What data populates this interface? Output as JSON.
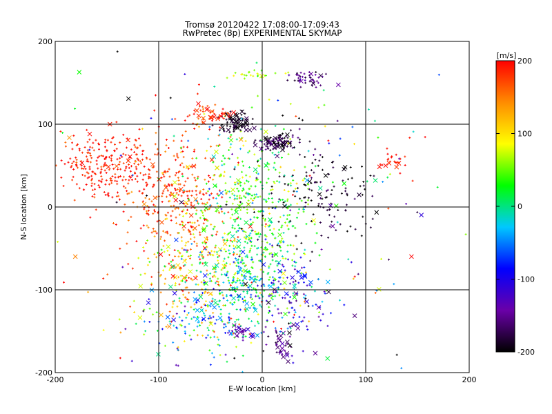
{
  "chart_data": {
    "type": "scatter",
    "title": "Tromsø 20120422 17:08:00-17:09:43",
    "subtitle": "RwPretec (8p) EXPERIMENTAL SKYMAP",
    "xlabel": "E-W location [km]",
    "ylabel": "N-S location [km]",
    "xlim": [
      -200,
      200
    ],
    "ylim": [
      -200,
      200
    ],
    "x_ticks": [
      "-200",
      "-100",
      "0",
      "100",
      "200"
    ],
    "y_ticks": [
      "-200",
      "-100",
      "0",
      "100",
      "200"
    ],
    "grid": true,
    "colorbar": {
      "label": "[m/s]",
      "range": [
        -200,
        200
      ],
      "ticks": [
        "200",
        "100",
        "0",
        "-100",
        "-200"
      ],
      "colormap": [
        "#000000",
        "#6a00a8",
        "#0000ff",
        "#00c8ff",
        "#00ff00",
        "#ffff00",
        "#ff8c00",
        "#ff0000"
      ]
    },
    "marker_types": [
      "+",
      "x"
    ],
    "clusters": [
      {
        "x": -150,
        "y": 50,
        "sx": 22,
        "sy": 20,
        "n": 260,
        "v": 190,
        "vs": 12,
        "cross": 0.03
      },
      {
        "x": -80,
        "y": 10,
        "sx": 25,
        "sy": 45,
        "n": 320,
        "v": 175,
        "vs": 25,
        "cross": 0.08
      },
      {
        "x": -10,
        "y": -10,
        "sx": 32,
        "sy": 55,
        "n": 520,
        "v": 40,
        "vs": 35,
        "cross": 0.07
      },
      {
        "x": -70,
        "y": -80,
        "sx": 30,
        "sy": 40,
        "n": 200,
        "v": 120,
        "vs": 45,
        "cross": 0.1
      },
      {
        "x": -20,
        "y": -90,
        "sx": 25,
        "sy": 25,
        "n": 220,
        "v": -10,
        "vs": 40,
        "cross": 0.1
      },
      {
        "x": 15,
        "y": 78,
        "sx": 10,
        "sy": 5,
        "n": 110,
        "v": -180,
        "vs": 25,
        "cross": 0.25
      },
      {
        "x": -25,
        "y": 103,
        "sx": 8,
        "sy": 7,
        "n": 70,
        "v": -190,
        "vs": 12,
        "cross": 0.3
      },
      {
        "x": -52,
        "y": 113,
        "sx": 10,
        "sy": 8,
        "n": 50,
        "v": 180,
        "vs": 20,
        "cross": 0.3
      },
      {
        "x": 45,
        "y": 155,
        "sx": 9,
        "sy": 5,
        "n": 45,
        "v": -160,
        "vs": 15,
        "cross": 0.05
      },
      {
        "x": 60,
        "y": 10,
        "sx": 30,
        "sy": 35,
        "n": 130,
        "v": -190,
        "vs": 15,
        "cross": 0.08
      },
      {
        "x": 25,
        "y": -120,
        "sx": 20,
        "sy": 35,
        "n": 120,
        "v": -110,
        "vs": 50,
        "cross": 0.2
      },
      {
        "x": 20,
        "y": -165,
        "sx": 6,
        "sy": 8,
        "n": 30,
        "v": -160,
        "vs": 20,
        "cross": 0.4
      },
      {
        "x": -20,
        "y": -150,
        "sx": 8,
        "sy": 5,
        "n": 30,
        "v": -130,
        "vs": 15,
        "cross": 0.4
      },
      {
        "x": -60,
        "y": -140,
        "sx": 30,
        "sy": 25,
        "n": 120,
        "v": -40,
        "vs": 60,
        "cross": 0.15
      },
      {
        "x": 125,
        "y": 55,
        "sx": 10,
        "sy": 10,
        "n": 25,
        "v": 190,
        "vs": 10,
        "cross": 0.3
      },
      {
        "x": -10,
        "y": 160,
        "sx": 12,
        "sy": 3,
        "n": 25,
        "v": 60,
        "vs": 20,
        "cross": 0.05
      },
      {
        "x": 0,
        "y": 0,
        "sx": 100,
        "sy": 100,
        "n": 200,
        "v": 0,
        "vs": 140,
        "cross": 0.15
      }
    ]
  }
}
